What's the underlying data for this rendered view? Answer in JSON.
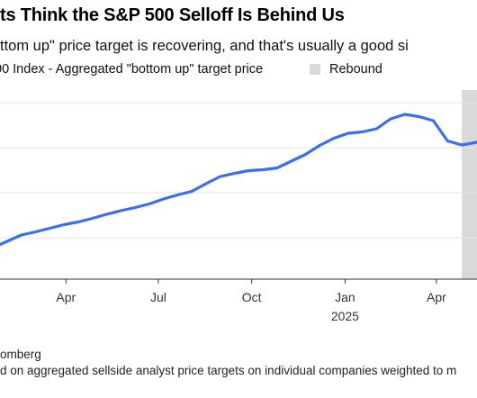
{
  "header": {
    "title": "ts Think the S&P 500 Selloff Is Behind Us",
    "subtitle": "ttom up\" price target is recovering, and that's usually a good si"
  },
  "legend": {
    "series_label": "00 Index - Aggregated \"bottom up\" target price",
    "rebound_label": "Rebound"
  },
  "footer": {
    "source": "omberg",
    "note": "d on aggregated sellside analyst price targets on individual companies weighted to m"
  },
  "colors": {
    "line": "#3a6df0",
    "rebound": "#d9d9d9",
    "grid": "#e6e6e6",
    "axis": "#333333"
  },
  "chart_data": {
    "type": "line",
    "title": "ts Think the S&P 500 Selloff Is Behind Us",
    "subtitle": "ttom up\" price target is recovering, and that's usually a good si",
    "x_ticks": [
      {
        "label": "Apr",
        "date": "2024-04-01"
      },
      {
        "label": "Jul",
        "date": "2024-07-01"
      },
      {
        "label": "Oct",
        "date": "2024-10-01"
      },
      {
        "label": "Jan",
        "date": "2025-01-01",
        "sublabel": "2025"
      },
      {
        "label": "Apr",
        "date": "2025-04-01"
      }
    ],
    "xlim": [
      "2024-01-27",
      "2025-05-11"
    ],
    "ylim": [
      0,
      4
    ],
    "y_gridlines": [
      1,
      2,
      3,
      4
    ],
    "y_tick_labels": "not visible (cropped)",
    "grid": true,
    "legend_position": "top",
    "shaded_region": {
      "label": "Rebound",
      "x_start": "2025-04-26",
      "x_end": "2025-05-11"
    },
    "series": [
      {
        "name": "00 Index - Aggregated \"bottom up\" target price",
        "points": [
          {
            "x": "2024-01-27",
            "y": 0.85
          },
          {
            "x": "2024-02-03",
            "y": 0.92
          },
          {
            "x": "2024-02-17",
            "y": 1.06
          },
          {
            "x": "2024-03-02",
            "y": 1.13
          },
          {
            "x": "2024-03-16",
            "y": 1.21
          },
          {
            "x": "2024-03-30",
            "y": 1.29
          },
          {
            "x": "2024-04-13",
            "y": 1.35
          },
          {
            "x": "2024-04-27",
            "y": 1.43
          },
          {
            "x": "2024-05-11",
            "y": 1.52
          },
          {
            "x": "2024-05-25",
            "y": 1.6
          },
          {
            "x": "2024-06-08",
            "y": 1.67
          },
          {
            "x": "2024-06-22",
            "y": 1.75
          },
          {
            "x": "2024-07-06",
            "y": 1.86
          },
          {
            "x": "2024-07-20",
            "y": 1.95
          },
          {
            "x": "2024-08-03",
            "y": 2.03
          },
          {
            "x": "2024-08-17",
            "y": 2.2
          },
          {
            "x": "2024-08-31",
            "y": 2.36
          },
          {
            "x": "2024-09-14",
            "y": 2.43
          },
          {
            "x": "2024-09-28",
            "y": 2.49
          },
          {
            "x": "2024-10-12",
            "y": 2.51
          },
          {
            "x": "2024-10-26",
            "y": 2.55
          },
          {
            "x": "2024-11-09",
            "y": 2.7
          },
          {
            "x": "2024-11-23",
            "y": 2.85
          },
          {
            "x": "2024-12-07",
            "y": 3.05
          },
          {
            "x": "2024-12-21",
            "y": 3.21
          },
          {
            "x": "2025-01-04",
            "y": 3.32
          },
          {
            "x": "2025-01-18",
            "y": 3.35
          },
          {
            "x": "2025-02-01",
            "y": 3.42
          },
          {
            "x": "2025-02-15",
            "y": 3.64
          },
          {
            "x": "2025-03-01",
            "y": 3.74
          },
          {
            "x": "2025-03-15",
            "y": 3.69
          },
          {
            "x": "2025-03-29",
            "y": 3.6
          },
          {
            "x": "2025-04-12",
            "y": 3.15
          },
          {
            "x": "2025-04-26",
            "y": 3.06
          },
          {
            "x": "2025-05-11",
            "y": 3.12
          }
        ]
      }
    ]
  }
}
